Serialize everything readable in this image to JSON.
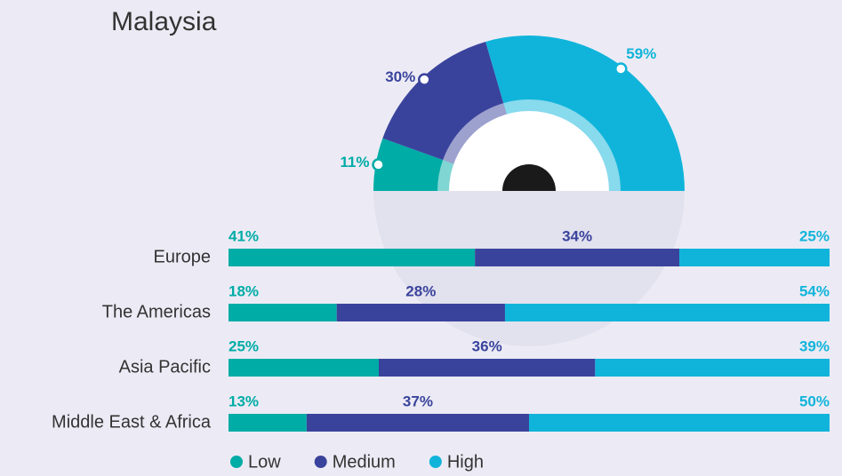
{
  "chart_data": [
    {
      "type": "pie",
      "title": "Malaysia",
      "categories": [
        "Low",
        "Medium",
        "High"
      ],
      "values": [
        11,
        30,
        59
      ],
      "value_labels": [
        "11%",
        "30%",
        "59%"
      ],
      "colors": [
        "#00aca6",
        "#3a439c",
        "#10b4da"
      ]
    },
    {
      "type": "stacked_bar",
      "orientation": "horizontal",
      "categories": [
        "Europe",
        "The Americas",
        "Asia Pacific",
        "Middle East & Africa"
      ],
      "xlim": [
        0,
        100
      ],
      "series": [
        {
          "name": "Low",
          "color": "#00aca6",
          "values": [
            41,
            18,
            25,
            13
          ],
          "value_labels": [
            "41%",
            "18%",
            "25%",
            "13%"
          ]
        },
        {
          "name": "Medium",
          "color": "#3a439c",
          "values": [
            34,
            28,
            36,
            37
          ],
          "value_labels": [
            "34%",
            "28%",
            "36%",
            "37%"
          ]
        },
        {
          "name": "High",
          "color": "#10b4da",
          "values": [
            25,
            54,
            39,
            50
          ],
          "value_labels": [
            "25%",
            "54%",
            "39%",
            "50%"
          ]
        }
      ],
      "legend": "bottom"
    }
  ]
}
